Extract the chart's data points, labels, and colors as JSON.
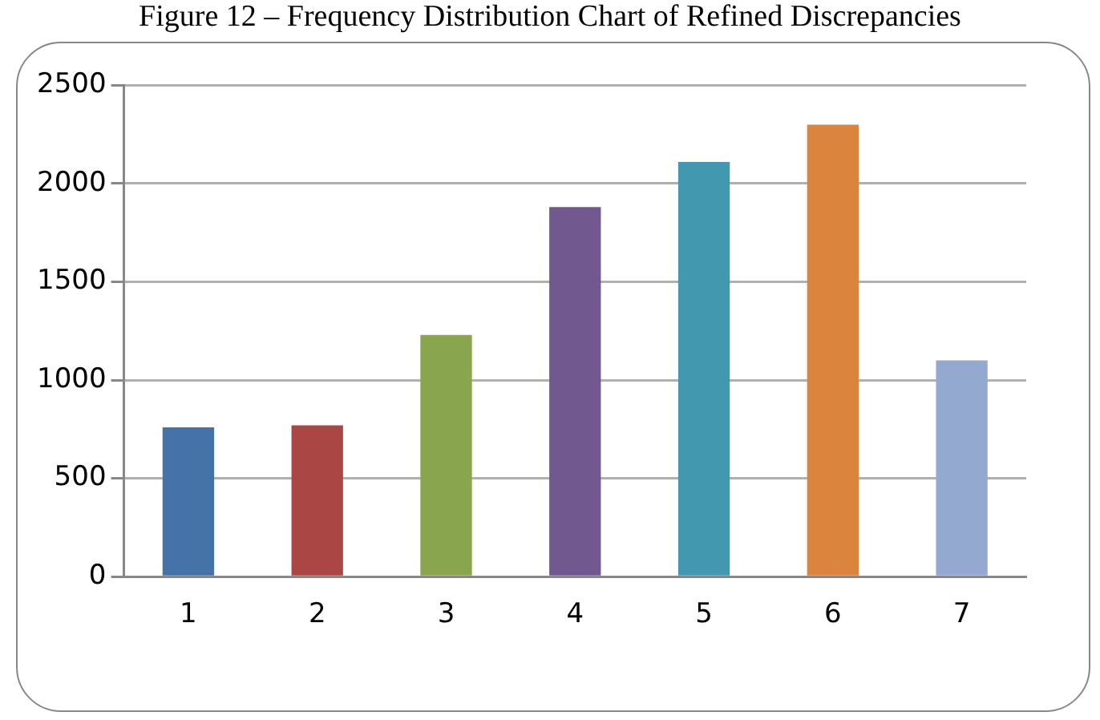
{
  "chart_data": {
    "type": "bar",
    "title": "Figure 12 – Frequency Distribution Chart of Refined Discrepancies",
    "categories": [
      "1",
      "2",
      "3",
      "4",
      "5",
      "6",
      "7"
    ],
    "values": [
      760,
      770,
      1230,
      1880,
      2110,
      2300,
      1100
    ],
    "colors": [
      "#4572a7",
      "#aa4643",
      "#89a54e",
      "#71588f",
      "#4198af",
      "#db843d",
      "#93a9cf"
    ],
    "ylim": [
      0,
      2500
    ],
    "yticks": [
      0,
      500,
      1000,
      1500,
      2000,
      2500
    ],
    "grid": "y",
    "legend": false
  }
}
